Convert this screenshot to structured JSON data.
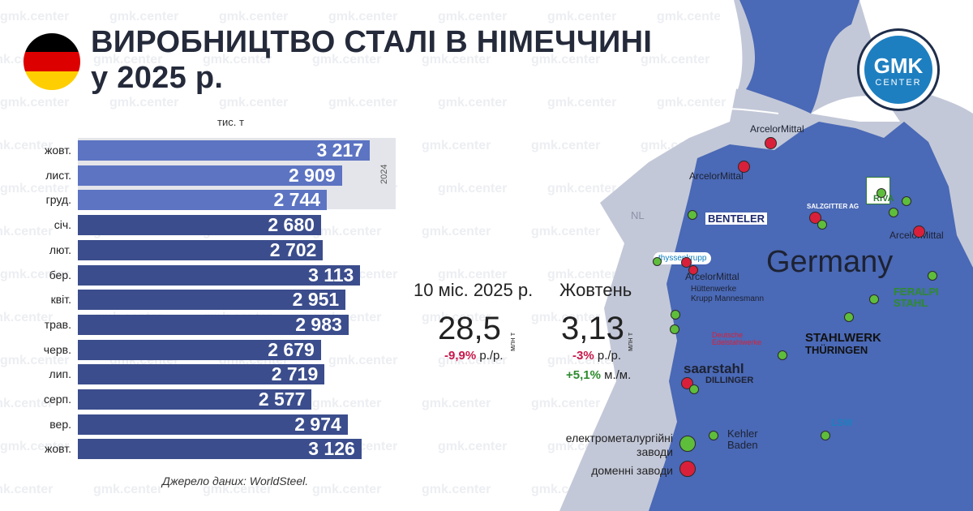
{
  "header": {
    "title_line1": "ВИРОБНИЦТВО СТАЛІ В НІМЕЧЧИНІ",
    "title_line2": "у 2025 р.",
    "flag_colors": [
      "#000000",
      "#dd0000",
      "#ffce00"
    ]
  },
  "brand": {
    "line1": "GMK",
    "line2": "CENTER",
    "watermark": "gmk.center"
  },
  "chart": {
    "unit": "тис. т",
    "year_band_label": "2024",
    "source": "Джерело даних: WorldSteel.",
    "rows": [
      {
        "label": "жовт.",
        "value": "3 217"
      },
      {
        "label": "лист.",
        "value": "2 909"
      },
      {
        "label": "груд.",
        "value": "2 744"
      },
      {
        "label": "січ.",
        "value": "2 680"
      },
      {
        "label": "лют.",
        "value": "2 702"
      },
      {
        "label": "бер.",
        "value": "3 113"
      },
      {
        "label": "квіт.",
        "value": "2 951"
      },
      {
        "label": "трав.",
        "value": "2 983"
      },
      {
        "label": "черв.",
        "value": "2 679"
      },
      {
        "label": "лип.",
        "value": "2 719"
      },
      {
        "label": "серп.",
        "value": "2 577"
      },
      {
        "label": "вер.",
        "value": "2 974"
      },
      {
        "label": "жовт.",
        "value": "3 126"
      }
    ]
  },
  "stats": {
    "period1": {
      "title": "10 міс. 2025 р.",
      "value": "28,5",
      "unit": "млн т",
      "yoy": "-9,9%",
      "yoy_suffix": "р./р."
    },
    "period2": {
      "title": "Жовтень",
      "value": "3,13",
      "unit": "млн т",
      "yoy": "-3%",
      "yoy_suffix": "р./р.",
      "mom": "+5,1%",
      "mom_suffix": "м./м."
    }
  },
  "legend": {
    "eaf": "електрометалургійні заводи",
    "bf": "доменні заводи"
  },
  "map": {
    "country": "Germany",
    "neighbor": "NL",
    "labels": {
      "am1": "ArcelorMittal",
      "am2": "ArcelorMittal",
      "am3": "ArcelorMittal",
      "am4": "ArcelorMittal",
      "benteler": "BENTELER",
      "salzgitter": "SALZGITTER AG",
      "riva": "RIVA",
      "thyssen": "thyssenkrupp",
      "hkm1": "Hüttenwerke",
      "hkm2": "Krupp Mannesmann",
      "feralpi1": "FERALPI",
      "feralpi2": "STAHL",
      "dew1": "Deutsche",
      "dew2": "Edelstahlwerke",
      "stahlwerk1": "STAHLWERK",
      "stahlwerk2": "THÜRINGEN",
      "saarstahl": "saarstahl",
      "dillinger": "DILLINGER",
      "kehler1": "Kehler",
      "kehler2": "Baden",
      "lsw": "LSW"
    }
  },
  "chart_data": {
    "type": "bar",
    "orientation": "horizontal",
    "title": "ВИРОБНИЦТВО СТАЛІ В НІМЕЧЧИНІ у 2025 р.",
    "unit": "тис. т",
    "categories": [
      "жовт. 2024",
      "лист. 2024",
      "груд. 2024",
      "січ.",
      "лют.",
      "бер.",
      "квіт.",
      "трав.",
      "черв.",
      "лип.",
      "серп.",
      "вер.",
      "жовт."
    ],
    "values": [
      3217,
      2909,
      2744,
      2680,
      2702,
      3113,
      2951,
      2983,
      2679,
      2719,
      2577,
      2974,
      3126
    ],
    "highlight": {
      "band": "2024",
      "rows": [
        0,
        1,
        2
      ]
    },
    "annotations": [
      "10 міс. 2025 р.: 28,5 млн т, -9,9% р./р.",
      "Жовтень: 3,13 млн т, -3% р./р., +5,1% м./м."
    ],
    "source": "WorldSteel"
  }
}
